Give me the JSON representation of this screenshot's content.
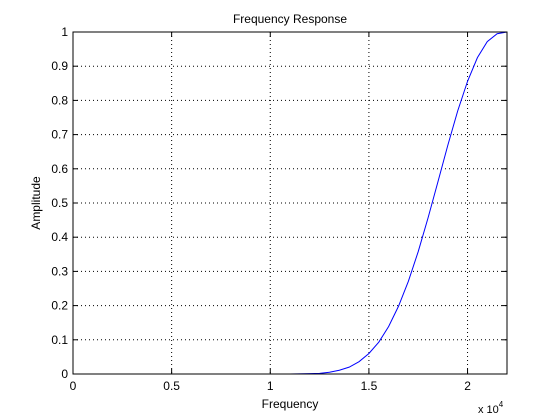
{
  "chart_data": {
    "type": "line",
    "title": "Frequency Response",
    "xlabel": "Frequency",
    "ylabel": "Amplitude",
    "x_exponent_base": "x 10",
    "x_exponent_power": "4",
    "xlim": [
      0,
      2.2
    ],
    "ylim": [
      0,
      1
    ],
    "x_ticks": [
      0,
      0.5,
      1,
      1.5,
      2
    ],
    "x_tick_labels": [
      "0",
      "0.5",
      "1",
      "1.5",
      "2"
    ],
    "y_ticks": [
      0,
      0.1,
      0.2,
      0.3,
      0.4,
      0.5,
      0.6,
      0.7,
      0.8,
      0.9,
      1
    ],
    "y_tick_labels": [
      "0",
      "0.1",
      "0.2",
      "0.3",
      "0.4",
      "0.5",
      "0.6",
      "0.7",
      "0.8",
      "0.9",
      "1"
    ],
    "grid": true,
    "line_color": "#0000ff",
    "series": [
      {
        "x": [
          0,
          0.2,
          0.4,
          0.6,
          0.8,
          1.0,
          1.1,
          1.2,
          1.25,
          1.3,
          1.35,
          1.4,
          1.45,
          1.5,
          1.55,
          1.6,
          1.65,
          1.7,
          1.75,
          1.8,
          1.85,
          1.9,
          1.95,
          2.0,
          2.05,
          2.1,
          2.15,
          2.2
        ],
        "y": [
          0,
          0,
          0,
          0,
          0,
          0,
          0,
          0.001,
          0.002,
          0.005,
          0.011,
          0.02,
          0.036,
          0.06,
          0.093,
          0.139,
          0.198,
          0.271,
          0.358,
          0.457,
          0.562,
          0.669,
          0.769,
          0.856,
          0.925,
          0.972,
          0.995,
          1.0
        ]
      }
    ]
  }
}
